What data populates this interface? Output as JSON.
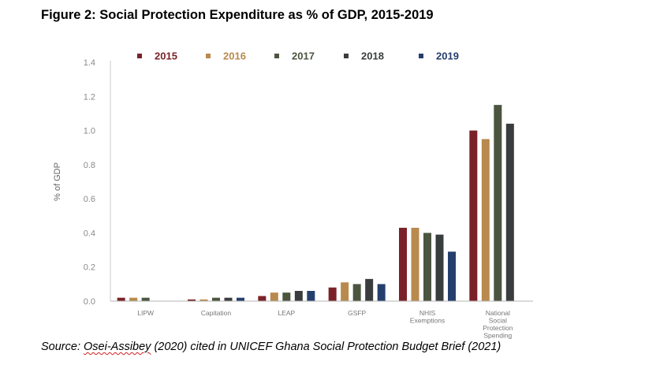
{
  "figure_title": "Figure 2: Social Protection Expenditure as % of GDP, 2015-2019",
  "source": {
    "prefix": "Source: ",
    "author": "Osei-Assibey",
    "rest": " (2020) cited in UNICEF Ghana Social Protection Budget Brief (2021)"
  },
  "chart_data": {
    "type": "bar",
    "title": "",
    "xlabel": "",
    "ylabel": "% of GDP",
    "ylim": [
      0,
      1.4
    ],
    "yticks": [
      "0.0",
      "0.2",
      "0.4",
      "0.6",
      "0.8",
      "1.0",
      "1.2",
      "1.4"
    ],
    "grid": false,
    "legend": "top",
    "categories": [
      [
        "LIPW"
      ],
      [
        "Capitation"
      ],
      [
        "LEAP"
      ],
      [
        "GSFP"
      ],
      [
        "NHIS",
        "Exemptions"
      ],
      [
        "National",
        "Social",
        "Protection",
        "Spending"
      ]
    ],
    "series": [
      {
        "name": "2015",
        "color": "#7a2228",
        "values": [
          0.02,
          0.01,
          0.03,
          0.08,
          0.43,
          1.0
        ]
      },
      {
        "name": "2016",
        "color": "#b88a4e",
        "values": [
          0.02,
          0.01,
          0.05,
          0.11,
          0.43,
          0.95
        ]
      },
      {
        "name": "2017",
        "color": "#4b5540",
        "values": [
          0.02,
          0.02,
          0.05,
          0.1,
          0.4,
          1.15
        ]
      },
      {
        "name": "2018",
        "color": "#3a3d3e",
        "values": [
          null,
          0.02,
          0.06,
          0.13,
          0.39,
          1.04
        ]
      },
      {
        "name": "2019",
        "color": "#253f6d",
        "values": [
          null,
          0.02,
          0.06,
          0.1,
          0.29,
          null
        ]
      }
    ]
  }
}
